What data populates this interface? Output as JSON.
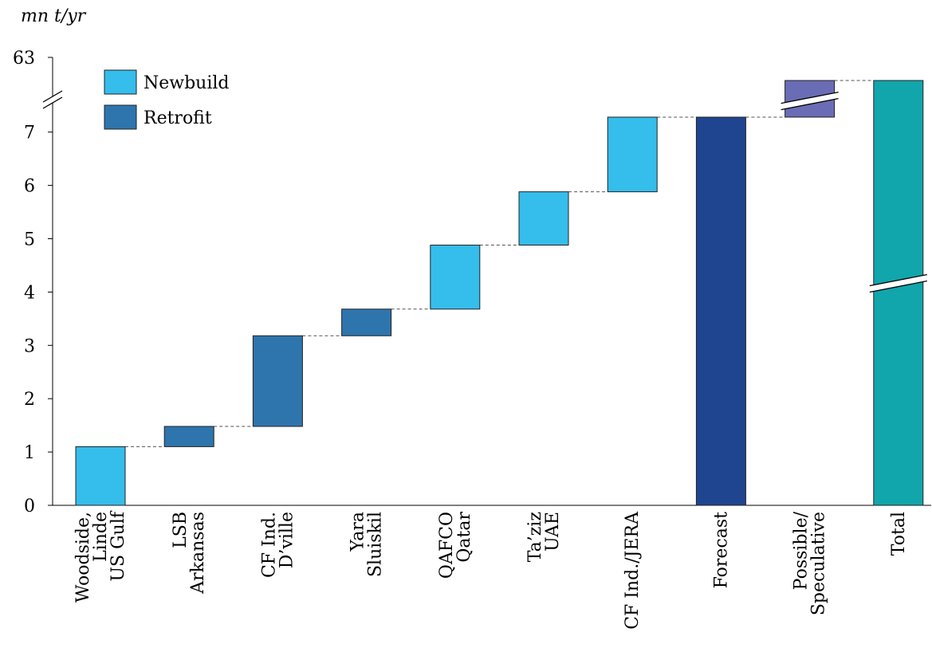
{
  "chart_data": {
    "type": "bar",
    "variant": "waterfall",
    "unit_label": "mn t/yr",
    "y_ticks": [
      "0",
      "1",
      "2",
      "3",
      "4",
      "5",
      "6",
      "7",
      "63"
    ],
    "axis_break": "between 7 and 63",
    "legend": [
      {
        "name": "Newbuild",
        "color": "#35bdec"
      },
      {
        "name": "Retrofit",
        "color": "#2e75ae"
      }
    ],
    "legend_position": "top-left",
    "connectors": "dashed",
    "bars": [
      {
        "category": [
          "Woodside,",
          "Linde",
          "US Gulf"
        ],
        "start": 0,
        "end": 1.1,
        "kind": "Newbuild",
        "color": "#35bdec"
      },
      {
        "category": [
          "LSB",
          "Arkansas"
        ],
        "start": 1.1,
        "end": 1.48,
        "kind": "Retrofit",
        "color": "#2e75ae"
      },
      {
        "category": [
          "CF Ind.",
          "D’ville"
        ],
        "start": 1.48,
        "end": 3.18,
        "kind": "Retrofit",
        "color": "#2e75ae"
      },
      {
        "category": [
          "Yara",
          "Sluiskil"
        ],
        "start": 3.18,
        "end": 3.68,
        "kind": "Retrofit",
        "color": "#2e75ae"
      },
      {
        "category": [
          "QAFCO",
          "Qatar"
        ],
        "start": 3.68,
        "end": 4.88,
        "kind": "Newbuild",
        "color": "#35bdec"
      },
      {
        "category": [
          "Ta’ziz",
          "UAE"
        ],
        "start": 4.88,
        "end": 5.88,
        "kind": "Newbuild",
        "color": "#35bdec"
      },
      {
        "category": [
          "CF Ind./JERA"
        ],
        "start": 5.88,
        "end": 7.28,
        "kind": "Newbuild",
        "color": "#35bdec"
      },
      {
        "category": [
          "Forecast"
        ],
        "start": 0,
        "end": 7.28,
        "kind": "Total",
        "color": "#1f4591"
      },
      {
        "category": [
          "Possible/",
          "Speculative"
        ],
        "start": 7.28,
        "end": 63,
        "kind": "Increment",
        "color": "#6a6cb5",
        "broken": true
      },
      {
        "category": [
          "Total"
        ],
        "start": 0,
        "end": 63,
        "kind": "Total",
        "color": "#10a6ac",
        "broken": true
      }
    ]
  }
}
